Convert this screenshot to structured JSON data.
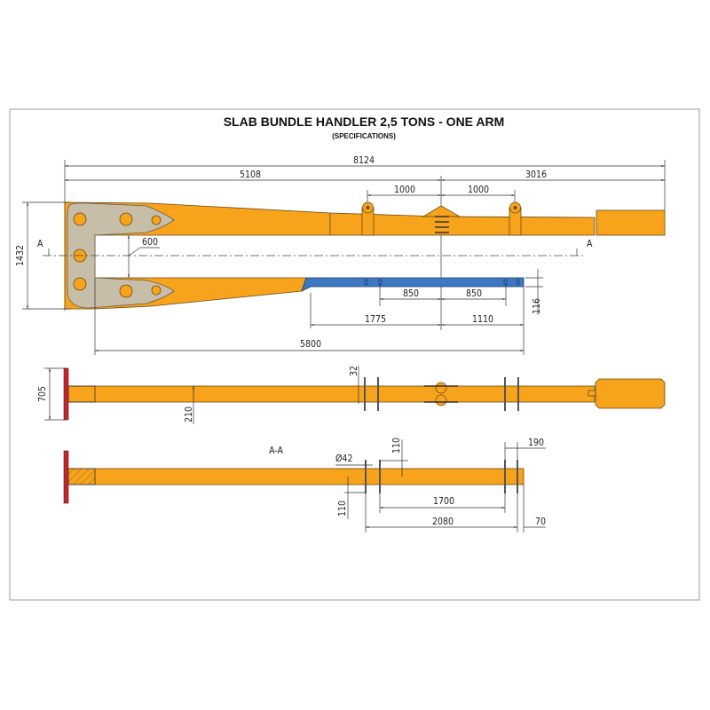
{
  "title": "SLAB BUNDLE HANDLER 2,5 TONS - ONE ARM",
  "subtitle": "(SPECIFICATIONS)",
  "colors": {
    "arm": "#F7A31C",
    "plate": "#C7BEAA",
    "fork_bar": "#3E78C2",
    "end_plate": "#C3262A"
  },
  "top_view": {
    "section_marker": "A",
    "dims": {
      "overall": "8124",
      "left": "5108",
      "right": "3016",
      "lug_left": "1000",
      "lug_right": "1000",
      "gap": "600",
      "height": "1432",
      "slot_left": "850",
      "slot_right": "850",
      "bar_left": "1775",
      "bar_right": "1110",
      "inner_length": "5800",
      "bar_thickness": "116"
    }
  },
  "side_view": {
    "dims": {
      "plate_height": "705",
      "beam_height": "210",
      "bolt": "32"
    }
  },
  "section_view": {
    "label": "A-A",
    "dims": {
      "hole_diameter": "Ø42",
      "offset_top": "110",
      "offset_bottom": "110",
      "spacing_inner": "1700",
      "spacing_outer": "2080",
      "end_offset": "70",
      "end_spacing": "190"
    }
  }
}
